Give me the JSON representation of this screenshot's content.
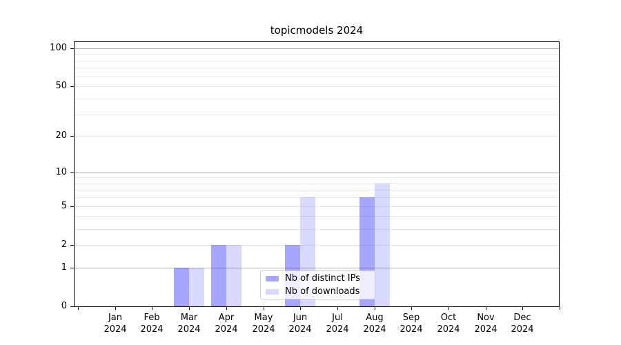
{
  "title": "topicmodels 2024",
  "chart_data": {
    "type": "bar",
    "title": "topicmodels 2024",
    "categories": [
      "Jan",
      "Feb",
      "Mar",
      "Apr",
      "May",
      "Jun",
      "Jul",
      "Aug",
      "Sep",
      "Oct",
      "Nov",
      "Dec"
    ],
    "x_year_label": "2024",
    "series": [
      {
        "name": "Nb of distinct IPs",
        "color": "#a6a6ff",
        "css_color": "rgba(0,0,255,0.35)",
        "values": [
          0,
          0,
          1,
          2,
          0,
          2,
          0,
          6,
          0,
          0,
          0,
          0
        ]
      },
      {
        "name": "Nb of downloads",
        "color": "#d9d9ff",
        "css_color": "rgba(0,0,255,0.15)",
        "values": [
          0,
          0,
          1,
          2,
          0,
          6,
          0,
          8,
          0,
          0,
          0,
          0
        ]
      }
    ],
    "yscale": "log1p",
    "ylim": [
      0,
      112
    ],
    "y_ticks": [
      0,
      1,
      2,
      5,
      10,
      20,
      50,
      100
    ],
    "y_major_grid": [
      1,
      10,
      100
    ],
    "y_minor_grid": [
      2,
      3,
      4,
      5,
      6,
      7,
      8,
      9,
      20,
      30,
      40,
      50,
      60,
      70,
      80,
      90
    ],
    "grid": true,
    "legend_position": "lower center",
    "colors": {
      "major_grid": "#b0b0b0",
      "minor_grid": "#e8e8e8",
      "axis": "#000000",
      "legend_border": "#cccccc",
      "legend_bg": "rgba(255,255,255,0.8)"
    }
  }
}
